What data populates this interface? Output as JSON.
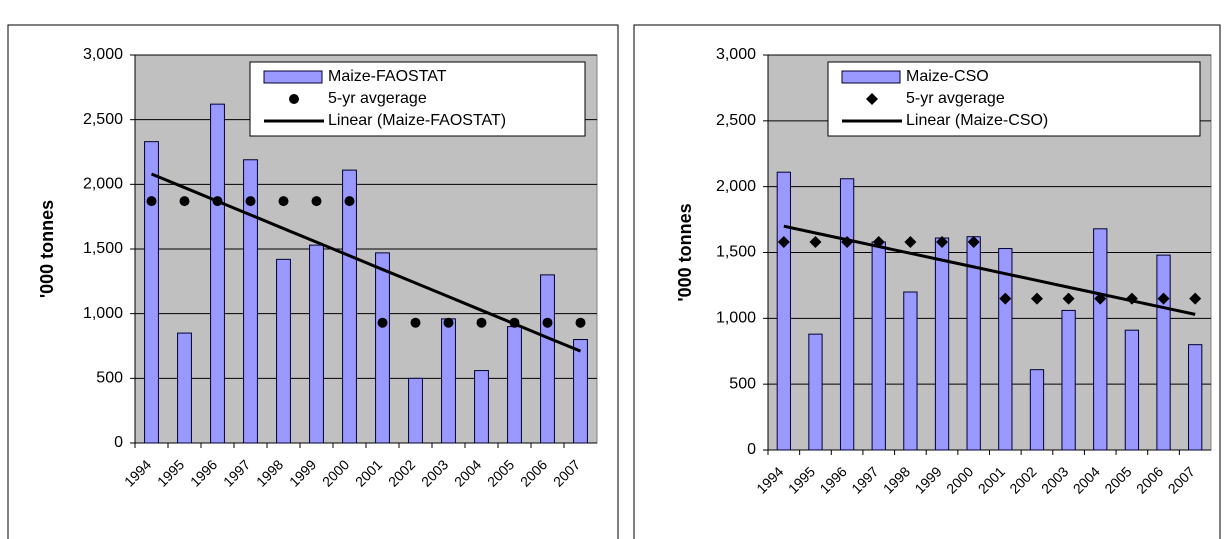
{
  "chart_data": [
    {
      "type": "bar",
      "ylabel": "'000 tonnes",
      "categories": [
        "1994",
        "1995",
        "1996",
        "1997",
        "1998",
        "1999",
        "2000",
        "2001",
        "2002",
        "2003",
        "2004",
        "2005",
        "2006",
        "2007"
      ],
      "ylim": [
        0,
        3000
      ],
      "yticks": [
        0,
        500,
        {
          "value": 1000,
          "label": "1,000"
        },
        {
          "value": 1500,
          "label": "1,500"
        },
        {
          "value": 2000,
          "label": "2,000"
        },
        {
          "value": 2500,
          "label": "2,500"
        },
        {
          "value": 3000,
          "label": "3,000"
        }
      ],
      "grid": true,
      "legend": "upper right",
      "series": [
        {
          "name": "Maize-FAOSTAT",
          "type": "bar",
          "color": "#9999ff",
          "values": [
            2330,
            850,
            2620,
            2190,
            1420,
            1530,
            2110,
            1470,
            500,
            960,
            560,
            900,
            1300,
            800
          ]
        },
        {
          "name": "5-yr avgerage",
          "type": "scatter",
          "marker": "circle",
          "color": "#000000",
          "values": [
            1870,
            1870,
            1870,
            1870,
            1870,
            1870,
            1870,
            930,
            930,
            930,
            930,
            930,
            930,
            930
          ]
        },
        {
          "name": "Linear (Maize-FAOSTAT)",
          "type": "line",
          "color": "#000000",
          "values": [
            2080,
            1975,
            1869,
            1764,
            1658,
            1553,
            1448,
            1342,
            1237,
            1132,
            1026,
            921,
            815,
            710
          ]
        }
      ]
    },
    {
      "type": "bar",
      "ylabel": "'000 tonnes",
      "categories": [
        "1994",
        "1995",
        "1996",
        "1997",
        "1998",
        "1999",
        "2000",
        "2001",
        "2002",
        "2003",
        "2004",
        "2005",
        "2006",
        "2007"
      ],
      "ylim": [
        0,
        3000
      ],
      "yticks": [
        0,
        500,
        {
          "value": 1000,
          "label": "1,000"
        },
        {
          "value": 1500,
          "label": "1,500"
        },
        {
          "value": 2000,
          "label": "2,000"
        },
        {
          "value": 2500,
          "label": "2,500"
        },
        {
          "value": 3000,
          "label": "3,000"
        }
      ],
      "grid": true,
      "legend": "upper right",
      "series": [
        {
          "name": "Maize-CSO",
          "type": "bar",
          "color": "#9999ff",
          "values": [
            2110,
            880,
            2060,
            1580,
            1200,
            1610,
            1620,
            1530,
            610,
            1060,
            1680,
            910,
            1480,
            800
          ]
        },
        {
          "name": "5-yr avgerage",
          "type": "scatter",
          "marker": "diamond",
          "color": "#000000",
          "values": [
            1580,
            1580,
            1580,
            1580,
            1580,
            1580,
            1580,
            1150,
            1150,
            1150,
            1150,
            1150,
            1150,
            1150
          ]
        },
        {
          "name": "Linear (Maize-CSO)",
          "type": "line",
          "color": "#000000",
          "values": [
            1700,
            1648,
            1597,
            1545,
            1494,
            1442,
            1391,
            1339,
            1288,
            1236,
            1185,
            1133,
            1082,
            1030
          ]
        }
      ]
    }
  ]
}
